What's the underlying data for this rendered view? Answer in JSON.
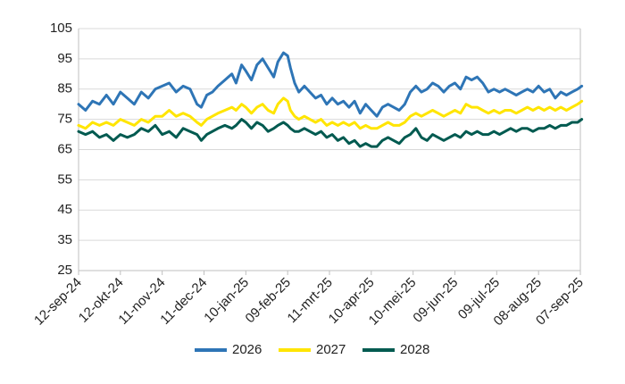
{
  "chart_data": {
    "type": "line",
    "title": "",
    "xlabel": "",
    "ylabel": "",
    "ylim": [
      25,
      105
    ],
    "yticks": [
      25,
      35,
      45,
      55,
      65,
      75,
      85,
      95,
      105
    ],
    "grid": true,
    "legend_position": "bottom",
    "x_tick_labels": [
      "12-sep-24",
      "12-okt-24",
      "11-nov-24",
      "11-dec-24",
      "10-jan-25",
      "09-feb-25",
      "11-mrt-25",
      "10-apr-25",
      "10-mei-25",
      "09-jun-25",
      "09-jul-25",
      "08-aug-25",
      "07-sep-25"
    ],
    "x_tick_days": [
      0,
      30,
      60,
      90,
      120,
      150,
      180,
      210,
      240,
      270,
      300,
      330,
      360
    ],
    "series": [
      {
        "name": "2026",
        "color": "#2e75b6",
        "points": [
          [
            0,
            80
          ],
          [
            5,
            78
          ],
          [
            10,
            81
          ],
          [
            15,
            80
          ],
          [
            20,
            83
          ],
          [
            25,
            80
          ],
          [
            30,
            84
          ],
          [
            35,
            82
          ],
          [
            40,
            80
          ],
          [
            45,
            84
          ],
          [
            50,
            82
          ],
          [
            55,
            85
          ],
          [
            60,
            86
          ],
          [
            65,
            87
          ],
          [
            70,
            84
          ],
          [
            75,
            86
          ],
          [
            80,
            85
          ],
          [
            85,
            80
          ],
          [
            88,
            79
          ],
          [
            92,
            83
          ],
          [
            96,
            84
          ],
          [
            100,
            86
          ],
          [
            105,
            88
          ],
          [
            110,
            90
          ],
          [
            113,
            87
          ],
          [
            117,
            93
          ],
          [
            120,
            91
          ],
          [
            124,
            88
          ],
          [
            128,
            93
          ],
          [
            132,
            95
          ],
          [
            136,
            92
          ],
          [
            140,
            89
          ],
          [
            143,
            94
          ],
          [
            147,
            97
          ],
          [
            150,
            96
          ],
          [
            152,
            92
          ],
          [
            155,
            87
          ],
          [
            158,
            84
          ],
          [
            162,
            86
          ],
          [
            166,
            84
          ],
          [
            170,
            82
          ],
          [
            174,
            83
          ],
          [
            178,
            80
          ],
          [
            182,
            82
          ],
          [
            186,
            80
          ],
          [
            190,
            81
          ],
          [
            194,
            79
          ],
          [
            198,
            81
          ],
          [
            202,
            77
          ],
          [
            206,
            80
          ],
          [
            210,
            78
          ],
          [
            214,
            76
          ],
          [
            218,
            79
          ],
          [
            222,
            80
          ],
          [
            226,
            79
          ],
          [
            230,
            78
          ],
          [
            234,
            80
          ],
          [
            238,
            84
          ],
          [
            242,
            86
          ],
          [
            246,
            84
          ],
          [
            250,
            85
          ],
          [
            254,
            87
          ],
          [
            258,
            86
          ],
          [
            262,
            84
          ],
          [
            266,
            86
          ],
          [
            270,
            87
          ],
          [
            274,
            85
          ],
          [
            278,
            89
          ],
          [
            282,
            88
          ],
          [
            286,
            89
          ],
          [
            290,
            87
          ],
          [
            294,
            84
          ],
          [
            298,
            85
          ],
          [
            302,
            84
          ],
          [
            306,
            85
          ],
          [
            310,
            84
          ],
          [
            314,
            83
          ],
          [
            318,
            84
          ],
          [
            322,
            85
          ],
          [
            326,
            84
          ],
          [
            330,
            86
          ],
          [
            334,
            84
          ],
          [
            338,
            85
          ],
          [
            342,
            82
          ],
          [
            346,
            84
          ],
          [
            350,
            83
          ],
          [
            354,
            84
          ],
          [
            358,
            85
          ],
          [
            361,
            86
          ]
        ]
      },
      {
        "name": "2027",
        "color": "#ffe500",
        "points": [
          [
            0,
            73
          ],
          [
            5,
            72
          ],
          [
            10,
            74
          ],
          [
            15,
            73
          ],
          [
            20,
            74
          ],
          [
            25,
            73
          ],
          [
            30,
            75
          ],
          [
            35,
            74
          ],
          [
            40,
            73
          ],
          [
            45,
            75
          ],
          [
            50,
            74
          ],
          [
            55,
            76
          ],
          [
            60,
            76
          ],
          [
            65,
            78
          ],
          [
            70,
            76
          ],
          [
            75,
            77
          ],
          [
            80,
            76
          ],
          [
            85,
            74
          ],
          [
            88,
            73
          ],
          [
            92,
            75
          ],
          [
            96,
            76
          ],
          [
            100,
            77
          ],
          [
            105,
            78
          ],
          [
            110,
            79
          ],
          [
            113,
            78
          ],
          [
            117,
            80
          ],
          [
            120,
            79
          ],
          [
            124,
            77
          ],
          [
            128,
            79
          ],
          [
            132,
            80
          ],
          [
            136,
            78
          ],
          [
            140,
            77
          ],
          [
            143,
            80
          ],
          [
            147,
            82
          ],
          [
            150,
            81
          ],
          [
            152,
            78
          ],
          [
            155,
            76
          ],
          [
            158,
            75
          ],
          [
            162,
            76
          ],
          [
            166,
            75
          ],
          [
            170,
            74
          ],
          [
            174,
            75
          ],
          [
            178,
            73
          ],
          [
            182,
            74
          ],
          [
            186,
            73
          ],
          [
            190,
            74
          ],
          [
            194,
            73
          ],
          [
            198,
            74
          ],
          [
            202,
            72
          ],
          [
            206,
            73
          ],
          [
            210,
            72
          ],
          [
            214,
            72
          ],
          [
            218,
            73
          ],
          [
            222,
            74
          ],
          [
            226,
            73
          ],
          [
            230,
            73
          ],
          [
            234,
            74
          ],
          [
            238,
            76
          ],
          [
            242,
            77
          ],
          [
            246,
            76
          ],
          [
            250,
            77
          ],
          [
            254,
            78
          ],
          [
            258,
            77
          ],
          [
            262,
            76
          ],
          [
            266,
            77
          ],
          [
            270,
            78
          ],
          [
            274,
            77
          ],
          [
            278,
            80
          ],
          [
            282,
            79
          ],
          [
            286,
            79
          ],
          [
            290,
            78
          ],
          [
            294,
            77
          ],
          [
            298,
            78
          ],
          [
            302,
            77
          ],
          [
            306,
            78
          ],
          [
            310,
            78
          ],
          [
            314,
            77
          ],
          [
            318,
            78
          ],
          [
            322,
            79
          ],
          [
            326,
            78
          ],
          [
            330,
            79
          ],
          [
            334,
            78
          ],
          [
            338,
            79
          ],
          [
            342,
            78
          ],
          [
            346,
            79
          ],
          [
            350,
            78
          ],
          [
            354,
            79
          ],
          [
            358,
            80
          ],
          [
            361,
            81
          ]
        ]
      },
      {
        "name": "2028",
        "color": "#005a50",
        "points": [
          [
            0,
            71
          ],
          [
            5,
            70
          ],
          [
            10,
            71
          ],
          [
            15,
            69
          ],
          [
            20,
            70
          ],
          [
            25,
            68
          ],
          [
            30,
            70
          ],
          [
            35,
            69
          ],
          [
            40,
            70
          ],
          [
            45,
            72
          ],
          [
            50,
            71
          ],
          [
            55,
            73
          ],
          [
            60,
            70
          ],
          [
            65,
            71
          ],
          [
            70,
            69
          ],
          [
            75,
            72
          ],
          [
            80,
            71
          ],
          [
            85,
            70
          ],
          [
            88,
            68
          ],
          [
            92,
            70
          ],
          [
            96,
            71
          ],
          [
            100,
            72
          ],
          [
            105,
            73
          ],
          [
            110,
            72
          ],
          [
            113,
            73
          ],
          [
            117,
            75
          ],
          [
            120,
            74
          ],
          [
            124,
            72
          ],
          [
            128,
            74
          ],
          [
            132,
            73
          ],
          [
            136,
            71
          ],
          [
            140,
            72
          ],
          [
            143,
            73
          ],
          [
            147,
            74
          ],
          [
            150,
            73
          ],
          [
            152,
            72
          ],
          [
            155,
            71
          ],
          [
            158,
            71
          ],
          [
            162,
            72
          ],
          [
            166,
            71
          ],
          [
            170,
            70
          ],
          [
            174,
            71
          ],
          [
            178,
            69
          ],
          [
            182,
            70
          ],
          [
            186,
            68
          ],
          [
            190,
            69
          ],
          [
            194,
            67
          ],
          [
            198,
            68
          ],
          [
            202,
            66
          ],
          [
            206,
            67
          ],
          [
            210,
            66
          ],
          [
            214,
            66
          ],
          [
            218,
            68
          ],
          [
            222,
            69
          ],
          [
            226,
            68
          ],
          [
            230,
            67
          ],
          [
            234,
            69
          ],
          [
            238,
            70
          ],
          [
            242,
            72
          ],
          [
            246,
            69
          ],
          [
            250,
            68
          ],
          [
            254,
            70
          ],
          [
            258,
            69
          ],
          [
            262,
            68
          ],
          [
            266,
            69
          ],
          [
            270,
            70
          ],
          [
            274,
            69
          ],
          [
            278,
            71
          ],
          [
            282,
            70
          ],
          [
            286,
            71
          ],
          [
            290,
            70
          ],
          [
            294,
            70
          ],
          [
            298,
            71
          ],
          [
            302,
            70
          ],
          [
            306,
            71
          ],
          [
            310,
            72
          ],
          [
            314,
            71
          ],
          [
            318,
            72
          ],
          [
            322,
            72
          ],
          [
            326,
            71
          ],
          [
            330,
            72
          ],
          [
            334,
            72
          ],
          [
            338,
            73
          ],
          [
            342,
            72
          ],
          [
            346,
            73
          ],
          [
            350,
            73
          ],
          [
            354,
            74
          ],
          [
            358,
            74
          ],
          [
            361,
            75
          ]
        ]
      }
    ]
  }
}
